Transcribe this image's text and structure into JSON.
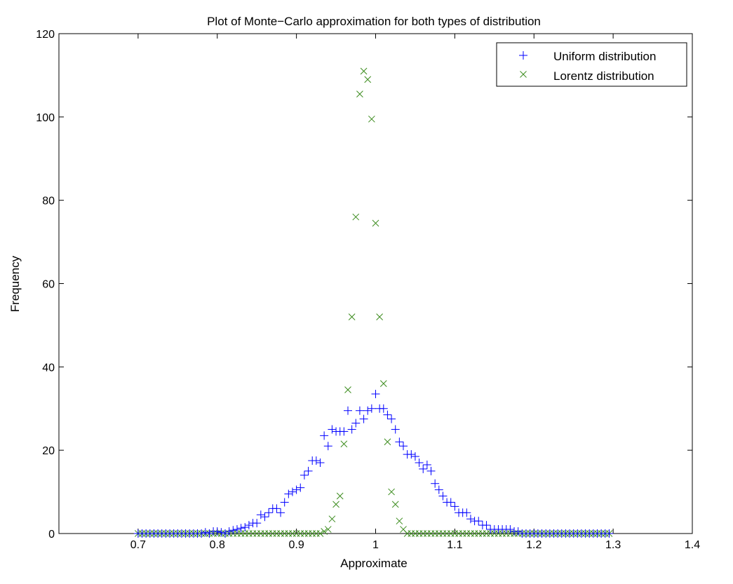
{
  "chart_data": {
    "type": "scatter",
    "title": "Plot of Monte−Carlo approximation for both types of distribution",
    "xlabel": "Approximate",
    "ylabel": "Frequency",
    "xlim": [
      0.6,
      1.4
    ],
    "ylim": [
      0,
      120
    ],
    "x_ticks": [
      "0.7",
      "0.8",
      "0.9",
      "1",
      "1.1",
      "1.2",
      "1.3",
      "1.4"
    ],
    "x_tick_values": [
      0.7,
      0.8,
      0.9,
      1.0,
      1.1,
      1.2,
      1.3,
      1.4
    ],
    "y_ticks": [
      "0",
      "20",
      "40",
      "60",
      "80",
      "100",
      "120"
    ],
    "y_tick_values": [
      0,
      20,
      40,
      60,
      80,
      100,
      120
    ],
    "grid": false,
    "legend_position": "top-right",
    "series": [
      {
        "name": "Uniform distribution",
        "marker": "plus",
        "color": "#0000ff",
        "points": [
          [
            0.7,
            0
          ],
          [
            0.705,
            0
          ],
          [
            0.71,
            0
          ],
          [
            0.715,
            0
          ],
          [
            0.72,
            0
          ],
          [
            0.725,
            0
          ],
          [
            0.73,
            0
          ],
          [
            0.735,
            0
          ],
          [
            0.74,
            0
          ],
          [
            0.745,
            0
          ],
          [
            0.75,
            0
          ],
          [
            0.755,
            0
          ],
          [
            0.76,
            0
          ],
          [
            0.765,
            0
          ],
          [
            0.77,
            0
          ],
          [
            0.775,
            0
          ],
          [
            0.78,
            0
          ],
          [
            0.785,
            0.3
          ],
          [
            0.79,
            0
          ],
          [
            0.795,
            0.5
          ],
          [
            0.8,
            0.5
          ],
          [
            0.805,
            0.3
          ],
          [
            0.81,
            0
          ],
          [
            0.815,
            0.5
          ],
          [
            0.82,
            0.8
          ],
          [
            0.825,
            1
          ],
          [
            0.83,
            1.3
          ],
          [
            0.835,
            1.5
          ],
          [
            0.84,
            2
          ],
          [
            0.845,
            2.5
          ],
          [
            0.85,
            2.5
          ],
          [
            0.855,
            4.5
          ],
          [
            0.86,
            4
          ],
          [
            0.865,
            5
          ],
          [
            0.87,
            6
          ],
          [
            0.875,
            6
          ],
          [
            0.88,
            5
          ],
          [
            0.885,
            7.5
          ],
          [
            0.89,
            9.5
          ],
          [
            0.895,
            10
          ],
          [
            0.9,
            10.5
          ],
          [
            0.905,
            11
          ],
          [
            0.91,
            14
          ],
          [
            0.915,
            15
          ],
          [
            0.92,
            17.5
          ],
          [
            0.925,
            17.5
          ],
          [
            0.93,
            17
          ],
          [
            0.935,
            23.5
          ],
          [
            0.94,
            21
          ],
          [
            0.945,
            25
          ],
          [
            0.95,
            24.5
          ],
          [
            0.955,
            24.5
          ],
          [
            0.96,
            24.5
          ],
          [
            0.965,
            29.5
          ],
          [
            0.97,
            25
          ],
          [
            0.975,
            26.5
          ],
          [
            0.98,
            29.5
          ],
          [
            0.985,
            27.5
          ],
          [
            0.99,
            29.5
          ],
          [
            0.995,
            30
          ],
          [
            1.0,
            33.5
          ],
          [
            1.005,
            30
          ],
          [
            1.01,
            30
          ],
          [
            1.015,
            28.5
          ],
          [
            1.02,
            27.5
          ],
          [
            1.025,
            25
          ],
          [
            1.03,
            22
          ],
          [
            1.035,
            21
          ],
          [
            1.04,
            19
          ],
          [
            1.045,
            19
          ],
          [
            1.05,
            18.5
          ],
          [
            1.055,
            17
          ],
          [
            1.06,
            15.5
          ],
          [
            1.065,
            16.5
          ],
          [
            1.07,
            15
          ],
          [
            1.075,
            12
          ],
          [
            1.08,
            10.5
          ],
          [
            1.085,
            9
          ],
          [
            1.09,
            7.5
          ],
          [
            1.095,
            7.5
          ],
          [
            1.1,
            6.5
          ],
          [
            1.105,
            5
          ],
          [
            1.11,
            5
          ],
          [
            1.115,
            5
          ],
          [
            1.12,
            3.5
          ],
          [
            1.125,
            3
          ],
          [
            1.13,
            3
          ],
          [
            1.135,
            2
          ],
          [
            1.14,
            2
          ],
          [
            1.145,
            1
          ],
          [
            1.15,
            1
          ],
          [
            1.155,
            1
          ],
          [
            1.16,
            1
          ],
          [
            1.165,
            1
          ],
          [
            1.17,
            1
          ],
          [
            1.175,
            0.5
          ],
          [
            1.18,
            0.5
          ],
          [
            1.185,
            0
          ],
          [
            1.19,
            0
          ],
          [
            1.195,
            0
          ],
          [
            1.2,
            0
          ],
          [
            1.205,
            0
          ],
          [
            1.21,
            0
          ],
          [
            1.215,
            0
          ],
          [
            1.22,
            0
          ],
          [
            1.225,
            0
          ],
          [
            1.23,
            0
          ],
          [
            1.235,
            0
          ],
          [
            1.24,
            0
          ],
          [
            1.245,
            0
          ],
          [
            1.25,
            0
          ],
          [
            1.255,
            0
          ],
          [
            1.26,
            0
          ],
          [
            1.265,
            0
          ],
          [
            1.27,
            0
          ],
          [
            1.275,
            0
          ],
          [
            1.28,
            0
          ],
          [
            1.285,
            0
          ],
          [
            1.29,
            0
          ],
          [
            1.295,
            0
          ]
        ]
      },
      {
        "name": "Lorentz distribution",
        "marker": "x",
        "color": "#3c8c1e",
        "points": [
          [
            0.7,
            0
          ],
          [
            0.705,
            0
          ],
          [
            0.71,
            0
          ],
          [
            0.715,
            0
          ],
          [
            0.72,
            0
          ],
          [
            0.725,
            0
          ],
          [
            0.73,
            0
          ],
          [
            0.735,
            0
          ],
          [
            0.74,
            0
          ],
          [
            0.745,
            0
          ],
          [
            0.75,
            0
          ],
          [
            0.755,
            0
          ],
          [
            0.76,
            0
          ],
          [
            0.765,
            0
          ],
          [
            0.77,
            0
          ],
          [
            0.775,
            0
          ],
          [
            0.78,
            0
          ],
          [
            0.785,
            0
          ],
          [
            0.79,
            0
          ],
          [
            0.795,
            0
          ],
          [
            0.8,
            0
          ],
          [
            0.805,
            0
          ],
          [
            0.81,
            0
          ],
          [
            0.815,
            0
          ],
          [
            0.82,
            0
          ],
          [
            0.825,
            0
          ],
          [
            0.83,
            0
          ],
          [
            0.835,
            0
          ],
          [
            0.84,
            0
          ],
          [
            0.845,
            0
          ],
          [
            0.85,
            0
          ],
          [
            0.855,
            0
          ],
          [
            0.86,
            0
          ],
          [
            0.865,
            0
          ],
          [
            0.87,
            0
          ],
          [
            0.875,
            0
          ],
          [
            0.88,
            0
          ],
          [
            0.885,
            0
          ],
          [
            0.89,
            0
          ],
          [
            0.895,
            0
          ],
          [
            0.9,
            0
          ],
          [
            0.905,
            0
          ],
          [
            0.91,
            0
          ],
          [
            0.915,
            0
          ],
          [
            0.92,
            0
          ],
          [
            0.925,
            0
          ],
          [
            0.93,
            0
          ],
          [
            0.935,
            0.5
          ],
          [
            0.94,
            1
          ],
          [
            0.945,
            3.5
          ],
          [
            0.95,
            7
          ],
          [
            0.955,
            9
          ],
          [
            0.96,
            21.5
          ],
          [
            0.965,
            34.5
          ],
          [
            0.97,
            52
          ],
          [
            0.975,
            76
          ],
          [
            0.98,
            105.5
          ],
          [
            0.985,
            111
          ],
          [
            0.99,
            109
          ],
          [
            0.995,
            99.5
          ],
          [
            1.0,
            74.5
          ],
          [
            1.005,
            52
          ],
          [
            1.01,
            36
          ],
          [
            1.015,
            22
          ],
          [
            1.02,
            10
          ],
          [
            1.025,
            7
          ],
          [
            1.03,
            3
          ],
          [
            1.035,
            1
          ],
          [
            1.04,
            0
          ],
          [
            1.045,
            0
          ],
          [
            1.05,
            0
          ],
          [
            1.055,
            0
          ],
          [
            1.06,
            0
          ],
          [
            1.065,
            0
          ],
          [
            1.07,
            0
          ],
          [
            1.075,
            0
          ],
          [
            1.08,
            0
          ],
          [
            1.085,
            0
          ],
          [
            1.09,
            0
          ],
          [
            1.095,
            0
          ],
          [
            1.1,
            0
          ],
          [
            1.105,
            0
          ],
          [
            1.11,
            0
          ],
          [
            1.115,
            0
          ],
          [
            1.12,
            0
          ],
          [
            1.125,
            0
          ],
          [
            1.13,
            0
          ],
          [
            1.135,
            0
          ],
          [
            1.14,
            0
          ],
          [
            1.145,
            0
          ],
          [
            1.15,
            0
          ],
          [
            1.155,
            0
          ],
          [
            1.16,
            0
          ],
          [
            1.165,
            0
          ],
          [
            1.17,
            0
          ],
          [
            1.175,
            0
          ],
          [
            1.18,
            0
          ],
          [
            1.185,
            0
          ],
          [
            1.19,
            0
          ],
          [
            1.195,
            0
          ],
          [
            1.2,
            0
          ],
          [
            1.205,
            0
          ],
          [
            1.21,
            0
          ],
          [
            1.215,
            0
          ],
          [
            1.22,
            0
          ],
          [
            1.225,
            0
          ],
          [
            1.23,
            0
          ],
          [
            1.235,
            0
          ],
          [
            1.24,
            0
          ],
          [
            1.245,
            0
          ],
          [
            1.25,
            0
          ],
          [
            1.255,
            0
          ],
          [
            1.26,
            0
          ],
          [
            1.265,
            0
          ],
          [
            1.27,
            0
          ],
          [
            1.275,
            0
          ],
          [
            1.28,
            0
          ],
          [
            1.285,
            0
          ],
          [
            1.29,
            0
          ],
          [
            1.295,
            0
          ]
        ]
      }
    ]
  }
}
